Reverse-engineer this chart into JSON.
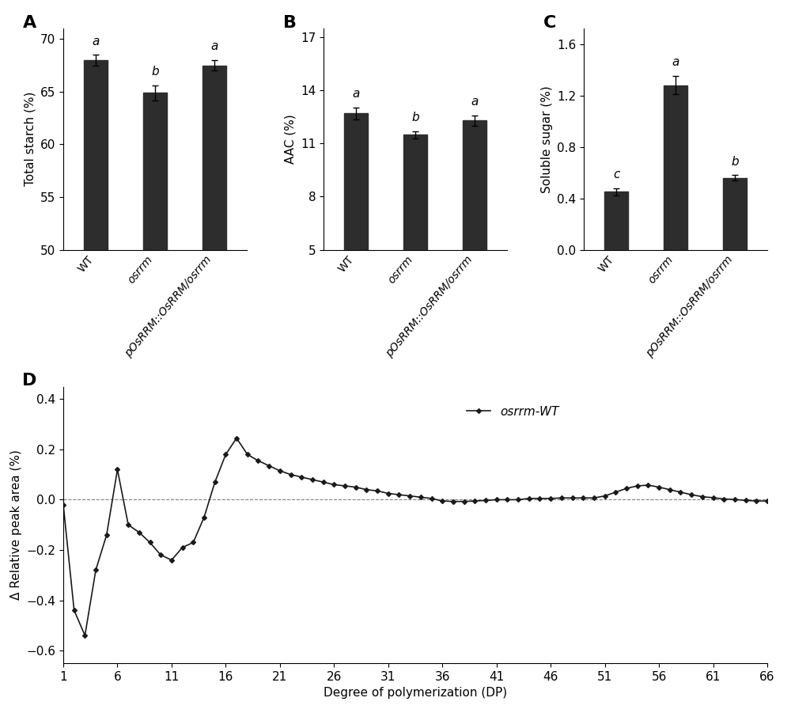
{
  "panel_A": {
    "categories": [
      "WT",
      "osrrm",
      "pOsRRM::OsRRM/osrrm"
    ],
    "values": [
      68.0,
      64.9,
      67.5
    ],
    "errors": [
      0.5,
      0.7,
      0.5
    ],
    "ylabel": "Total starch (%)",
    "ylim": [
      50,
      71
    ],
    "yticks": [
      50,
      55,
      60,
      65,
      70
    ],
    "letters": [
      "a",
      "b",
      "a"
    ],
    "label": "A"
  },
  "panel_B": {
    "categories": [
      "WT",
      "osrrm",
      "pOsRRM::OsRRM/osrrm"
    ],
    "values": [
      12.7,
      11.5,
      12.3
    ],
    "errors": [
      0.35,
      0.2,
      0.3
    ],
    "ylabel": "AAC (%)",
    "ylim": [
      5,
      17.5
    ],
    "yticks": [
      5,
      8,
      11,
      14,
      17
    ],
    "letters": [
      "a",
      "b",
      "a"
    ],
    "label": "B"
  },
  "panel_C": {
    "categories": [
      "WT",
      "osrrm",
      "pOsRRM::OsRRM/osrrm"
    ],
    "values": [
      0.45,
      1.28,
      0.56
    ],
    "errors": [
      0.03,
      0.07,
      0.02
    ],
    "ylabel": "Soluble sugar (%)",
    "ylim": [
      0,
      1.72
    ],
    "yticks": [
      0.0,
      0.4,
      0.8,
      1.2,
      1.6
    ],
    "letters": [
      "c",
      "a",
      "b"
    ],
    "label": "C"
  },
  "panel_D": {
    "x": [
      1,
      2,
      3,
      4,
      5,
      6,
      7,
      8,
      9,
      10,
      11,
      12,
      13,
      14,
      15,
      16,
      17,
      18,
      19,
      20,
      21,
      22,
      23,
      24,
      25,
      26,
      27,
      28,
      29,
      30,
      31,
      32,
      33,
      34,
      35,
      36,
      37,
      38,
      39,
      40,
      41,
      42,
      43,
      44,
      45,
      46,
      47,
      48,
      49,
      50,
      51,
      52,
      53,
      54,
      55,
      56,
      57,
      58,
      59,
      60,
      61,
      62,
      63,
      64,
      65,
      66
    ],
    "y": [
      -0.02,
      -0.44,
      -0.54,
      -0.28,
      -0.14,
      0.12,
      -0.1,
      -0.13,
      -0.17,
      -0.22,
      -0.24,
      -0.19,
      -0.17,
      -0.07,
      0.07,
      0.18,
      0.245,
      0.18,
      0.155,
      0.135,
      0.115,
      0.1,
      0.09,
      0.08,
      0.07,
      0.06,
      0.055,
      0.05,
      0.04,
      0.035,
      0.025,
      0.02,
      0.015,
      0.01,
      0.005,
      -0.005,
      -0.007,
      -0.007,
      -0.005,
      -0.003,
      0.0,
      0.0,
      0.0,
      0.005,
      0.005,
      0.005,
      0.007,
      0.007,
      0.007,
      0.007,
      0.015,
      0.03,
      0.045,
      0.055,
      0.058,
      0.05,
      0.04,
      0.03,
      0.02,
      0.012,
      0.008,
      0.003,
      0.001,
      -0.003,
      -0.005,
      -0.005
    ],
    "ylabel": "Δ Relative peak area (%)",
    "xlabel": "Degree of polymerization (DP)",
    "ylim": [
      -0.65,
      0.45
    ],
    "yticks": [
      -0.6,
      -0.4,
      -0.2,
      0.0,
      0.2,
      0.4
    ],
    "xticks": [
      1,
      6,
      11,
      16,
      21,
      26,
      31,
      36,
      41,
      46,
      51,
      56,
      61,
      66
    ],
    "legend_label": "osrrm-WT",
    "label": "D"
  },
  "bar_color": "#2d2d2d",
  "line_color": "#1a1a1a",
  "bg_color": "#ffffff",
  "font_size": 11,
  "label_fontsize": 16
}
